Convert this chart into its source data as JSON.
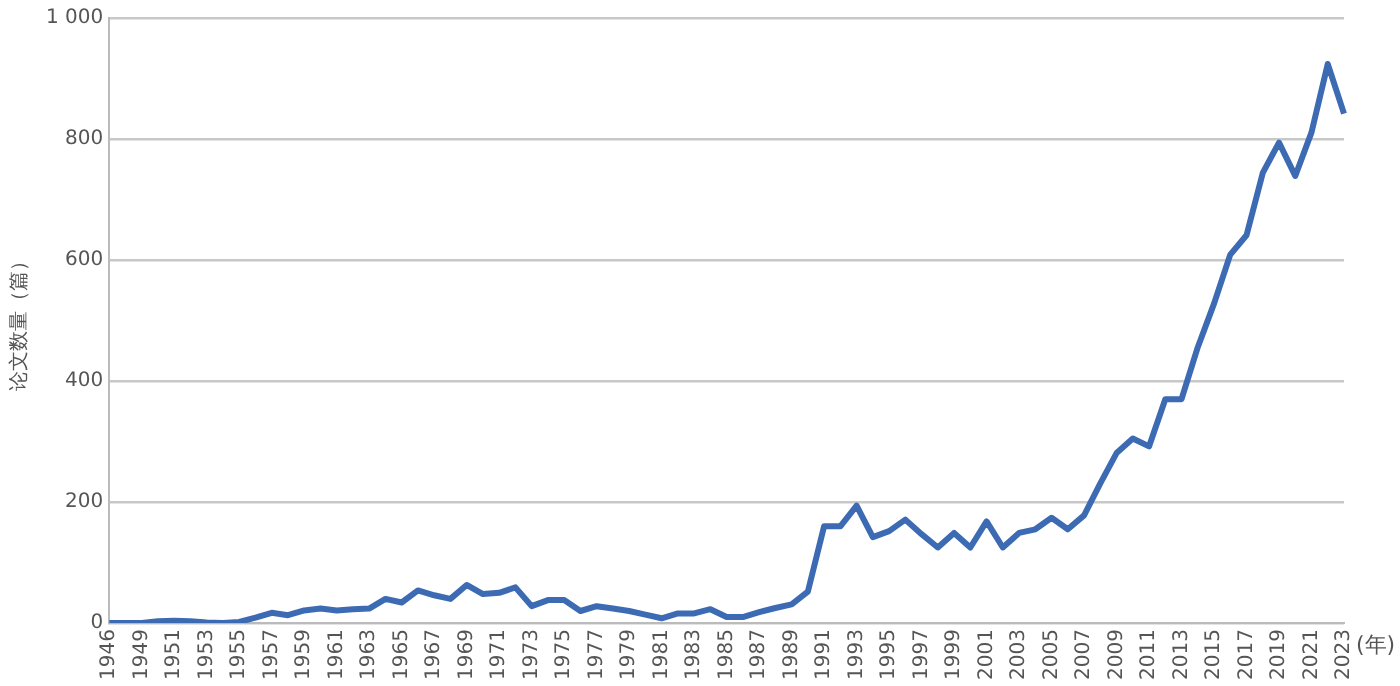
{
  "chart_data": {
    "type": "line",
    "ylabel": "论文数量（篇）",
    "xlabel": "(年)",
    "categories": [
      "1946",
      null,
      "1949",
      null,
      "1951",
      null,
      "1953",
      null,
      "1955",
      null,
      "1957",
      null,
      "1959",
      null,
      "1961",
      null,
      "1963",
      null,
      "1965",
      null,
      "1967",
      null,
      "1969",
      null,
      "1971",
      null,
      "1973",
      null,
      "1975",
      null,
      "1977",
      null,
      "1979",
      null,
      "1981",
      null,
      "1983",
      null,
      "1985",
      null,
      "1987",
      null,
      "1989",
      null,
      "1991",
      null,
      "1993",
      null,
      "1995",
      null,
      "1997",
      null,
      "1999",
      null,
      "2001",
      null,
      "2003",
      null,
      "2005",
      null,
      "2007",
      null,
      "2009",
      null,
      "2011",
      null,
      "2013",
      null,
      "2015",
      null,
      "2017",
      null,
      "2019",
      null,
      "2021",
      null,
      "2023"
    ],
    "series": [
      {
        "color": "#3d6bb3",
        "values": [
          0,
          0,
          0,
          3,
          4,
          3,
          1,
          0,
          2,
          9,
          17,
          13,
          21,
          24,
          21,
          23,
          24,
          40,
          34,
          54,
          46,
          40,
          63,
          48,
          50,
          59,
          28,
          38,
          38,
          20,
          28,
          24,
          20,
          14,
          8,
          16,
          16,
          23,
          10,
          10,
          18,
          25,
          31,
          52,
          160,
          160,
          194,
          142,
          152,
          171,
          147,
          125,
          149,
          125,
          168,
          125,
          149,
          155,
          174,
          155,
          178,
          231,
          281,
          305,
          292,
          370,
          370,
          456,
          528,
          609,
          641,
          744,
          794,
          739,
          811,
          924,
          842
        ]
      }
    ],
    "ylim": [
      0,
      1000
    ],
    "yticks": [
      0,
      200,
      400,
      600,
      800,
      {
        "value": 1000,
        "label": "1 000"
      }
    ],
    "grid": "y",
    "legend": false,
    "marker": "none",
    "line_style": "solid"
  }
}
